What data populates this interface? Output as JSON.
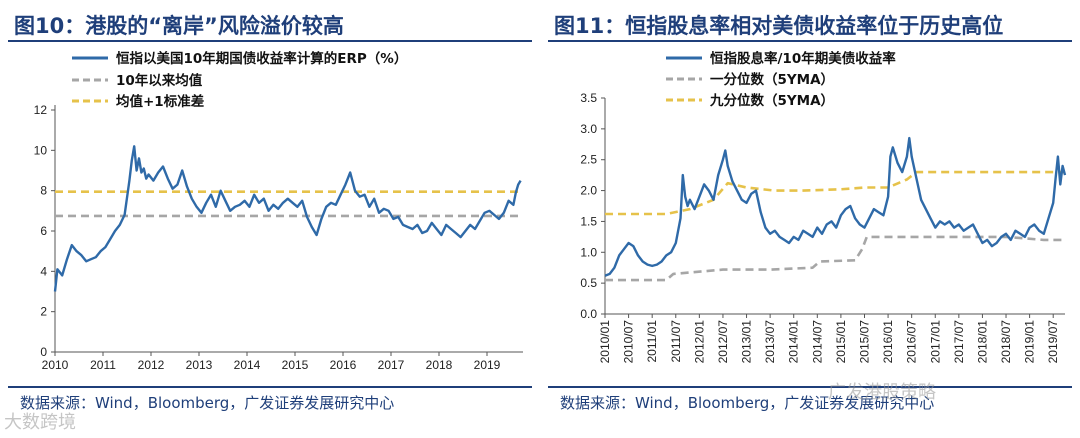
{
  "colors": {
    "series": "#2f6aa8",
    "mean": "#a6a6a6",
    "upper": "#e6c24a",
    "accent": "#1f3f7a"
  },
  "watermarks": {
    "left": "大数跨境",
    "right": "广发港股策略"
  },
  "chart_data": [
    {
      "type": "line",
      "figure_label": "图10：港股的“离岸”风险溢价较高",
      "source": "数据来源：Wind，Bloomberg，广发证券发展研究中心",
      "ylim": [
        0,
        12
      ],
      "yticks": [
        "0",
        "2",
        "4",
        "6",
        "8",
        "10",
        "12"
      ],
      "xlim": [
        2010,
        2019.75
      ],
      "xticks": [
        "2010",
        "2011",
        "2012",
        "2013",
        "2014",
        "2015",
        "2016",
        "2017",
        "2018",
        "2019"
      ],
      "series": [
        {
          "name": "恒指以美国10年期国债收益率计算的ERP（%）",
          "style": "solid",
          "x": [
            2010.0,
            2010.05,
            2010.15,
            2010.25,
            2010.35,
            2010.45,
            2010.55,
            2010.65,
            2010.75,
            2010.85,
            2010.95,
            2011.05,
            2011.15,
            2011.25,
            2011.35,
            2011.45,
            2011.55,
            2011.6,
            2011.65,
            2011.7,
            2011.75,
            2011.8,
            2011.85,
            2011.9,
            2011.95,
            2012.05,
            2012.15,
            2012.25,
            2012.35,
            2012.45,
            2012.55,
            2012.65,
            2012.75,
            2012.85,
            2012.95,
            2013.05,
            2013.15,
            2013.25,
            2013.35,
            2013.45,
            2013.55,
            2013.65,
            2013.75,
            2013.85,
            2013.95,
            2014.05,
            2014.15,
            2014.25,
            2014.35,
            2014.45,
            2014.55,
            2014.65,
            2014.75,
            2014.85,
            2014.95,
            2015.05,
            2015.15,
            2015.25,
            2015.35,
            2015.45,
            2015.55,
            2015.65,
            2015.75,
            2015.85,
            2015.95,
            2016.05,
            2016.15,
            2016.25,
            2016.35,
            2016.45,
            2016.55,
            2016.65,
            2016.75,
            2016.85,
            2016.95,
            2017.05,
            2017.15,
            2017.25,
            2017.35,
            2017.45,
            2017.55,
            2017.65,
            2017.75,
            2017.85,
            2017.95,
            2018.05,
            2018.15,
            2018.25,
            2018.35,
            2018.45,
            2018.55,
            2018.65,
            2018.75,
            2018.85,
            2018.95,
            2019.05,
            2019.15,
            2019.25,
            2019.35,
            2019.45,
            2019.55,
            2019.6,
            2019.65,
            2019.7
          ],
          "values": [
            3.0,
            4.1,
            3.8,
            4.6,
            5.3,
            5.0,
            4.8,
            4.5,
            4.6,
            4.7,
            5.0,
            5.2,
            5.6,
            6.0,
            6.3,
            6.8,
            8.5,
            9.5,
            10.2,
            9.0,
            9.6,
            8.9,
            9.1,
            8.6,
            8.8,
            8.5,
            8.9,
            9.2,
            8.6,
            8.1,
            8.3,
            9.0,
            8.2,
            7.6,
            7.2,
            6.9,
            7.4,
            7.8,
            7.2,
            8.0,
            7.5,
            7.0,
            7.2,
            7.3,
            7.5,
            7.2,
            7.8,
            7.4,
            7.6,
            7.0,
            7.3,
            7.1,
            7.4,
            7.6,
            7.4,
            7.2,
            7.5,
            6.7,
            6.2,
            5.8,
            6.6,
            7.2,
            7.4,
            7.3,
            7.8,
            8.3,
            8.9,
            8.0,
            7.7,
            7.8,
            7.2,
            7.6,
            6.9,
            7.1,
            7.0,
            6.6,
            6.7,
            6.3,
            6.2,
            6.1,
            6.3,
            5.9,
            6.0,
            6.4,
            6.1,
            5.8,
            6.3,
            6.1,
            5.9,
            5.7,
            6.0,
            6.3,
            6.1,
            6.5,
            6.9,
            7.0,
            6.8,
            6.6,
            6.9,
            7.5,
            7.3,
            7.9,
            8.3,
            8.5
          ]
        },
        {
          "name": "10年以来均值",
          "style": "dashed",
          "x": [
            2010.0,
            2019.75
          ],
          "values": [
            6.75,
            6.75
          ]
        },
        {
          "name": "均值+1标准差",
          "style": "dashed",
          "x": [
            2010.0,
            2019.75
          ],
          "values": [
            7.95,
            7.95
          ]
        }
      ]
    },
    {
      "type": "line",
      "figure_label": "图11：恒指股息率相对美债收益率位于历史高位",
      "source": "数据来源：Wind，Bloomberg，广发证券发展研究中心",
      "ylim": [
        0,
        3.5
      ],
      "yticks": [
        "0.0",
        "0.5",
        "1.0",
        "1.5",
        "2.0",
        "2.5",
        "3.0",
        "3.5"
      ],
      "xlim": [
        2010.0,
        2019.75
      ],
      "xticks": [
        "2010/01",
        "2010/07",
        "2011/01",
        "2011/07",
        "2012/01",
        "2012/07",
        "2013/01",
        "2013/07",
        "2014/01",
        "2014/07",
        "2015/01",
        "2015/07",
        "2016/01",
        "2016/07",
        "2017/01",
        "2017/07",
        "2018/01",
        "2018/07",
        "2019/01",
        "2019/07"
      ],
      "series": [
        {
          "name": "恒指股息率/10年期美债收益率",
          "style": "solid",
          "x": [
            2010.0,
            2010.1,
            2010.2,
            2010.3,
            2010.4,
            2010.5,
            2010.6,
            2010.7,
            2010.8,
            2010.9,
            2011.0,
            2011.1,
            2011.2,
            2011.3,
            2011.4,
            2011.5,
            2011.6,
            2011.65,
            2011.7,
            2011.75,
            2011.8,
            2011.9,
            2012.0,
            2012.1,
            2012.2,
            2012.3,
            2012.4,
            2012.5,
            2012.55,
            2012.6,
            2012.7,
            2012.8,
            2012.9,
            2013.0,
            2013.1,
            2013.2,
            2013.3,
            2013.4,
            2013.5,
            2013.6,
            2013.7,
            2013.8,
            2013.9,
            2014.0,
            2014.1,
            2014.2,
            2014.3,
            2014.4,
            2014.5,
            2014.6,
            2014.7,
            2014.8,
            2014.9,
            2015.0,
            2015.1,
            2015.2,
            2015.3,
            2015.4,
            2015.5,
            2015.6,
            2015.7,
            2015.8,
            2015.9,
            2016.0,
            2016.05,
            2016.1,
            2016.2,
            2016.3,
            2016.4,
            2016.45,
            2016.5,
            2016.6,
            2016.7,
            2016.8,
            2016.9,
            2017.0,
            2017.1,
            2017.2,
            2017.3,
            2017.4,
            2017.5,
            2017.6,
            2017.7,
            2017.8,
            2017.9,
            2018.0,
            2018.1,
            2018.2,
            2018.3,
            2018.4,
            2018.5,
            2018.6,
            2018.7,
            2018.8,
            2018.9,
            2019.0,
            2019.1,
            2019.2,
            2019.3,
            2019.4,
            2019.5,
            2019.55,
            2019.6,
            2019.65,
            2019.7,
            2019.75
          ],
          "values": [
            0.62,
            0.65,
            0.75,
            0.95,
            1.05,
            1.15,
            1.1,
            0.95,
            0.85,
            0.8,
            0.78,
            0.8,
            0.85,
            0.95,
            1.0,
            1.15,
            1.55,
            2.25,
            1.9,
            1.75,
            1.85,
            1.7,
            1.9,
            2.1,
            2.0,
            1.85,
            2.25,
            2.5,
            2.65,
            2.4,
            2.15,
            2.0,
            1.85,
            1.8,
            1.95,
            2.0,
            1.65,
            1.4,
            1.3,
            1.35,
            1.25,
            1.2,
            1.15,
            1.25,
            1.2,
            1.35,
            1.3,
            1.25,
            1.4,
            1.3,
            1.45,
            1.5,
            1.4,
            1.6,
            1.7,
            1.75,
            1.55,
            1.45,
            1.4,
            1.55,
            1.7,
            1.65,
            1.6,
            1.9,
            2.55,
            2.7,
            2.45,
            2.3,
            2.55,
            2.85,
            2.55,
            2.2,
            1.85,
            1.7,
            1.55,
            1.4,
            1.5,
            1.45,
            1.5,
            1.4,
            1.45,
            1.35,
            1.4,
            1.45,
            1.3,
            1.15,
            1.2,
            1.1,
            1.15,
            1.25,
            1.3,
            1.2,
            1.35,
            1.3,
            1.25,
            1.4,
            1.45,
            1.35,
            1.3,
            1.55,
            1.8,
            2.2,
            2.55,
            2.1,
            2.4,
            2.25
          ]
        },
        {
          "name": "一分位数（5YMA）",
          "style": "dashed",
          "x": [
            2010.0,
            2011.3,
            2011.45,
            2012.5,
            2013.5,
            2014.4,
            2014.55,
            2015.3,
            2015.45,
            2015.55,
            2016.5,
            2017.5,
            2018.5,
            2019.3,
            2019.5,
            2019.75
          ],
          "values": [
            0.55,
            0.55,
            0.65,
            0.72,
            0.72,
            0.75,
            0.85,
            0.87,
            1.05,
            1.25,
            1.25,
            1.25,
            1.25,
            1.2,
            1.2,
            1.2
          ]
        },
        {
          "name": "九分位数（5YMA）",
          "style": "dashed",
          "x": [
            2010.0,
            2011.3,
            2011.8,
            2012.3,
            2012.6,
            2013.0,
            2013.6,
            2014.2,
            2015.0,
            2015.5,
            2016.0,
            2016.4,
            2016.6,
            2017.5,
            2018.5,
            2019.75
          ],
          "values": [
            1.62,
            1.62,
            1.7,
            1.85,
            2.12,
            2.05,
            2.0,
            2.0,
            2.02,
            2.05,
            2.05,
            2.18,
            2.3,
            2.3,
            2.3,
            2.3
          ]
        }
      ]
    }
  ]
}
